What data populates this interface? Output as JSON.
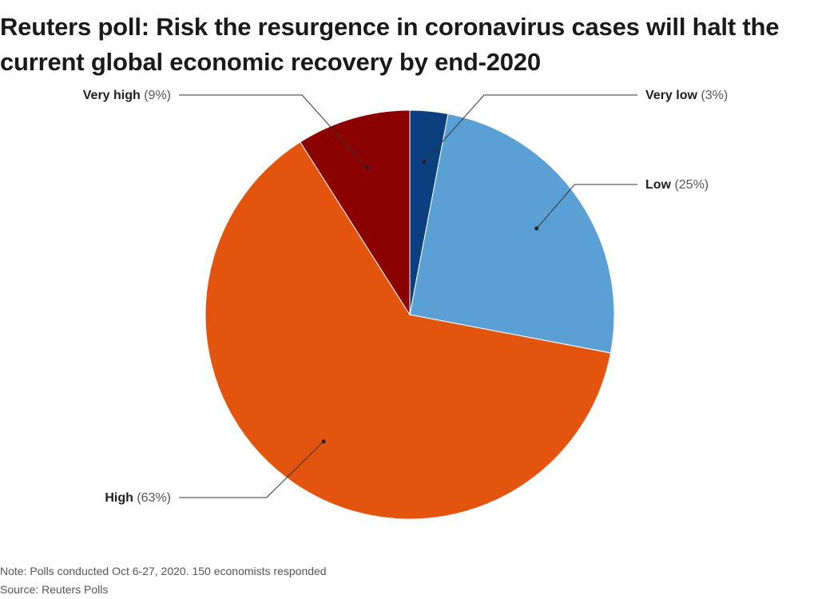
{
  "title": "Reuters poll: Risk the resurgence in coronavirus cases will halt the current global economic recovery by end-2020",
  "note": "Note: Polls conducted Oct 6-27, 2020. 150 economists responded",
  "source": "Source: Reuters Polls",
  "chart_data": {
    "type": "pie",
    "title": "Reuters poll: Risk the resurgence in coronavirus cases will halt the current global economic recovery by end-2020",
    "start_angle_deg": 0,
    "direction": "clockwise",
    "slices": [
      {
        "label": "Very low",
        "value": 3,
        "display": "(3%)",
        "color": "#0b3f7f",
        "label_side": "right"
      },
      {
        "label": "Low",
        "value": 25,
        "display": "(25%)",
        "color": "#5ba0d5",
        "label_side": "right"
      },
      {
        "label": "High",
        "value": 63,
        "display": "(63%)",
        "color": "#e3540f",
        "label_side": "left"
      },
      {
        "label": "Very high",
        "value": 9,
        "display": "(9%)",
        "color": "#8b0000",
        "label_side": "left"
      }
    ]
  }
}
